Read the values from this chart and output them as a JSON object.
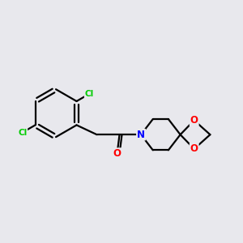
{
  "bg_color": "#e8e8ed",
  "bond_color": "#000000",
  "bond_width": 1.6,
  "atom_colors": {
    "Cl": "#00cc00",
    "O": "#ff0000",
    "N": "#0000ff",
    "C": "#000000"
  }
}
